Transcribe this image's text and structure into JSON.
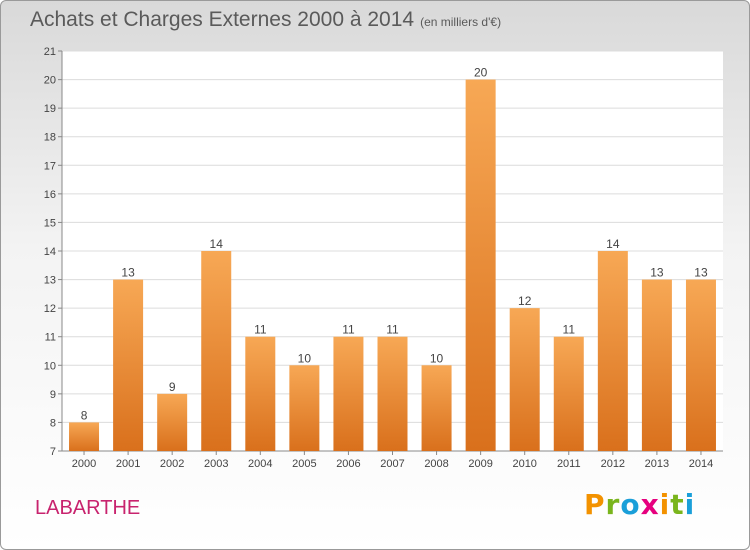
{
  "chart_data": {
    "type": "bar",
    "title": "Achats et Charges Externes 2000 à 2014",
    "subtitle": "(en milliers d'€)",
    "categories": [
      "2000",
      "2001",
      "2002",
      "2003",
      "2004",
      "2005",
      "2006",
      "2007",
      "2008",
      "2009",
      "2010",
      "2011",
      "2012",
      "2013",
      "2014"
    ],
    "values": [
      8,
      13,
      9,
      14,
      11,
      10,
      11,
      11,
      10,
      20,
      12,
      11,
      14,
      13,
      13
    ],
    "ylim": [
      7,
      21
    ],
    "yticks": [
      "7",
      "8",
      "9",
      "10",
      "11",
      "12",
      "13",
      "14",
      "15",
      "16",
      "17",
      "18",
      "19",
      "20",
      "21"
    ],
    "grid": true,
    "bar_color": "#f0902f"
  },
  "commune": "LABARTHE",
  "brand": {
    "letters": [
      "P",
      "r",
      "o",
      "x",
      "i",
      "t",
      "i"
    ],
    "colors": [
      "#f39200",
      "#7ab51d",
      "#1a9fd9",
      "#e6007e",
      "#f39200",
      "#7ab51d",
      "#1a9fd9"
    ]
  }
}
